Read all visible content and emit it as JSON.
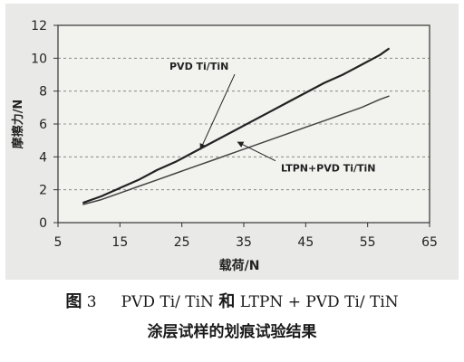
{
  "chart_data": {
    "type": "line",
    "xlabel": "载荷/N",
    "ylabel": "摩擦力/N",
    "xlim": [
      5,
      65
    ],
    "ylim": [
      0,
      12
    ],
    "xticks": [
      5,
      15,
      25,
      35,
      45,
      55,
      65
    ],
    "yticks": [
      0,
      2,
      4,
      6,
      8,
      10,
      12
    ],
    "grid": "horizontal-dashed",
    "series": [
      {
        "name": "PVD Ti/TiN",
        "color": "#222222",
        "x": [
          9,
          12,
          15,
          18,
          21,
          24,
          27,
          30,
          33,
          36,
          39,
          42,
          45,
          48,
          51,
          54,
          57,
          58.5
        ],
        "y": [
          1.2,
          1.6,
          2.1,
          2.6,
          3.2,
          3.7,
          4.3,
          4.9,
          5.5,
          6.1,
          6.7,
          7.3,
          7.9,
          8.5,
          9.0,
          9.6,
          10.2,
          10.6
        ]
      },
      {
        "name": "LTPN+PVD Ti/TiN",
        "color": "#444444",
        "x": [
          9,
          12,
          15,
          18,
          21,
          24,
          27,
          30,
          33,
          36,
          39,
          42,
          45,
          48,
          51,
          54,
          57,
          58.5
        ],
        "y": [
          1.1,
          1.4,
          1.8,
          2.2,
          2.6,
          3.0,
          3.4,
          3.8,
          4.2,
          4.6,
          5.0,
          5.4,
          5.8,
          6.2,
          6.6,
          7.0,
          7.5,
          7.7
        ]
      }
    ],
    "annotations": [
      {
        "text": "PVD Ti/TiN",
        "x": 23,
        "y": 9.3,
        "arrow_to": [
          28,
          4.45
        ]
      },
      {
        "text": "LTPN+PVD Ti/TiN",
        "x": 41,
        "y": 3.1,
        "arrow_to": [
          34,
          4.9
        ]
      }
    ]
  },
  "caption": {
    "fig_label": "图",
    "fig_number": "3",
    "line1_a": "PVD Ti/ TiN",
    "line1_cn": "和",
    "line1_b": "LTPN + PVD Ti/ TiN",
    "line2": "涂层试样的划痕试验结果"
  }
}
